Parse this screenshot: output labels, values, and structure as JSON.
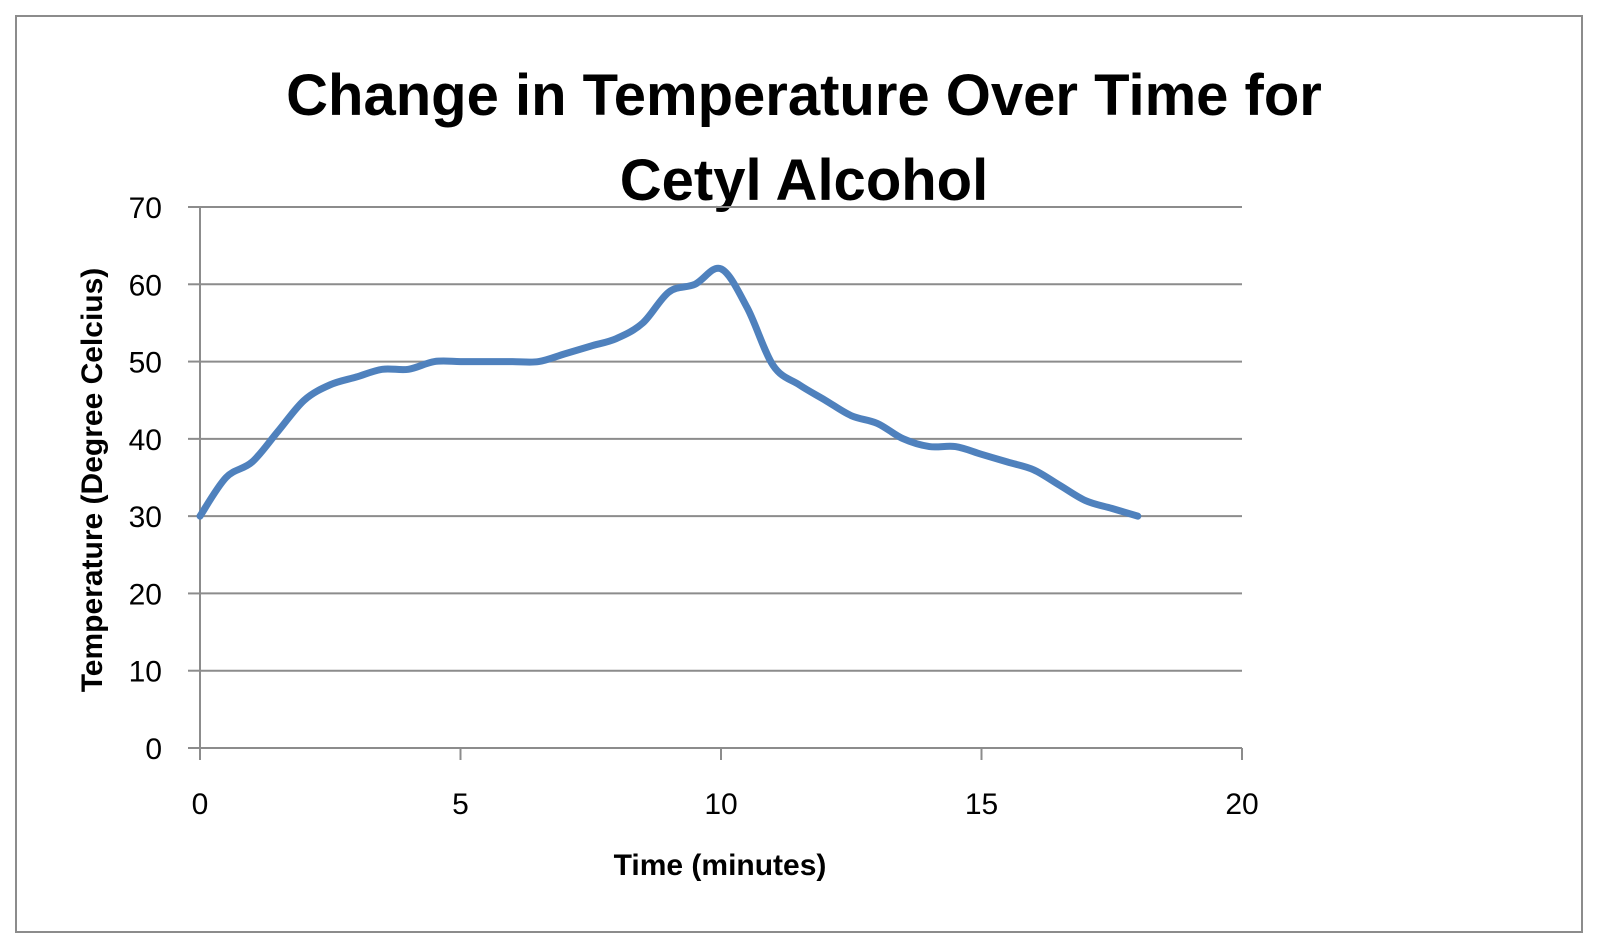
{
  "chart_data": {
    "type": "line",
    "title_lines": [
      "Change in Temperature Over Time for",
      "Cetyl Alcohol"
    ],
    "xlabel": "Time (minutes)",
    "ylabel": "Temperature (Degree Celcius)",
    "xlim": [
      0,
      20
    ],
    "ylim": [
      0,
      70
    ],
    "x_ticks": [
      0,
      5,
      10,
      15,
      20
    ],
    "y_ticks": [
      0,
      10,
      20,
      30,
      40,
      50,
      60,
      70
    ],
    "grid": "horizontal",
    "legend": "none",
    "series": [
      {
        "color": "#4f81bd",
        "x": [
          0,
          0.5,
          1,
          1.5,
          2,
          2.5,
          3,
          3.5,
          4,
          4.5,
          5,
          5.5,
          6,
          6.5,
          7,
          7.5,
          8,
          8.5,
          9,
          9.5,
          10,
          10.5,
          11,
          11.5,
          12,
          12.5,
          13,
          13.5,
          14,
          14.5,
          15,
          15.5,
          16,
          16.5,
          17,
          17.5,
          18
        ],
        "y": [
          30,
          35,
          37,
          41,
          45,
          47,
          48,
          49,
          49,
          50,
          50,
          50,
          50,
          50,
          51,
          52,
          53,
          55,
          59,
          60,
          62,
          57,
          49.5,
          47,
          45,
          43,
          42,
          40,
          39,
          39,
          38,
          37,
          36,
          34,
          32,
          31,
          30
        ]
      }
    ]
  }
}
